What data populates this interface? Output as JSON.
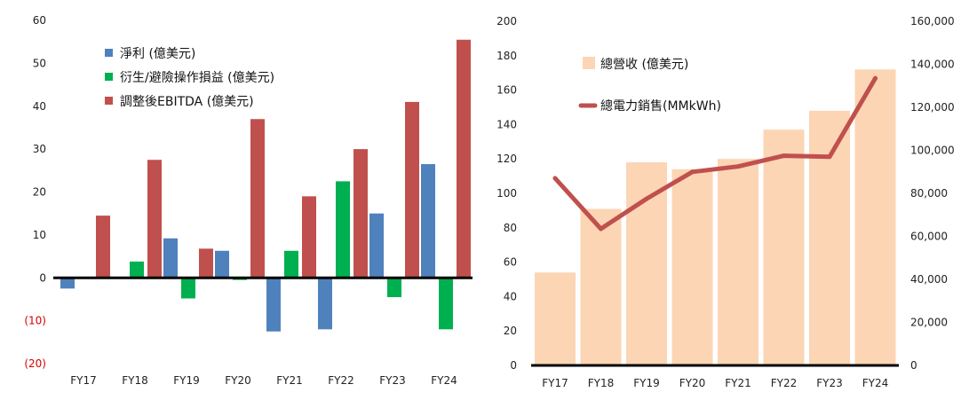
{
  "chart_data": [
    {
      "type": "bar",
      "categories": [
        "FY17",
        "FY18",
        "FY19",
        "FY20",
        "FY21",
        "FY22",
        "FY23",
        "FY24"
      ],
      "y_tick_labels": [
        "60",
        "50",
        "40",
        "30",
        "20",
        "10",
        "0",
        "(10)",
        "(20)"
      ],
      "ylim": [
        -20,
        60
      ],
      "grid": false,
      "legend_position": "top-left",
      "series": [
        {
          "name": "淨利 (億美元)",
          "color": "#4f81bd",
          "values": [
            -2.5,
            0,
            9.2,
            6.3,
            -12.5,
            -12.0,
            15.0,
            26.5
          ]
        },
        {
          "name": "衍生/避險操作損益 (億美元)",
          "color": "#00b050",
          "values": [
            0,
            3.8,
            -4.8,
            -0.5,
            6.3,
            22.5,
            -4.5,
            -12.0
          ]
        },
        {
          "name": "調整後EBITDA (億美元)",
          "color": "#c0504d",
          "values": [
            14.5,
            27.5,
            6.8,
            37.0,
            19.0,
            30.0,
            41.0,
            55.5
          ]
        }
      ]
    },
    {
      "type": "bar",
      "categories": [
        "FY17",
        "FY18",
        "FY19",
        "FY20",
        "FY21",
        "FY22",
        "FY23",
        "FY24"
      ],
      "y_left_tick_labels": [
        "200",
        "180",
        "160",
        "140",
        "120",
        "100",
        "80",
        "60",
        "40",
        "20",
        "0"
      ],
      "y_right_tick_labels": [
        "160,000",
        "140,000",
        "120,000",
        "100,000",
        "80,000",
        "60,000",
        "40,000",
        "20,000",
        "0"
      ],
      "ylim_left": [
        0,
        200
      ],
      "ylim_right": [
        0,
        160000
      ],
      "grid": false,
      "legend_position": "top-center",
      "series": [
        {
          "name": "總營收 (億美元)",
          "type": "bar",
          "axis": "left",
          "color": "#fcd5b5",
          "values": [
            54,
            91,
            118,
            114,
            120,
            137,
            148,
            172
          ]
        },
        {
          "name": "總電力銷售(MMkWh)",
          "type": "line",
          "axis": "right",
          "color": "#c0504d",
          "values": [
            87000,
            63500,
            77500,
            90000,
            92500,
            97500,
            97000,
            133500
          ]
        }
      ]
    }
  ]
}
